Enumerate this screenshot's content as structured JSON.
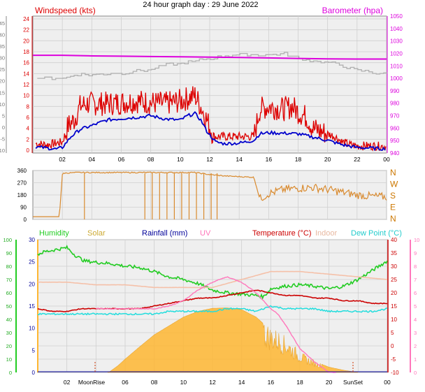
{
  "title": "24 hour graph day : 29 June 2022",
  "colors": {
    "windspeed": "#dd0000",
    "windavg": "#0000cc",
    "gust": "#b0b0b0",
    "barometer": "#dd00dd",
    "winddir": "#d98a2e",
    "humidity": "#22cc22",
    "solar": "#ffb733",
    "rainfall": "#000099",
    "uv": "#ff77bb",
    "temperature": "#cc0000",
    "indoor": "#f5c0a8",
    "dewpoint": "#22dddd",
    "grid": "#cfcfcf",
    "plot_bg": "#efefef"
  },
  "x_ticks": [
    "02",
    "04",
    "06",
    "08",
    "10",
    "12",
    "14",
    "16",
    "18",
    "20",
    "22",
    "00"
  ],
  "x_ticks_bottom": [
    "02",
    "06",
    "08",
    "10",
    "12",
    "14",
    "16",
    "18",
    "20",
    "00"
  ],
  "annotations": {
    "moonrise": "MoonRise",
    "sunset": "SunSet"
  },
  "panels": {
    "wind": {
      "left_label": "Windspeed (kts)",
      "right_label": "Barometer (hpa)",
      "left_outer_ticks": [
        "45",
        "40",
        "35",
        "30",
        "25",
        "20",
        "15",
        "10",
        "5",
        "0",
        "-5",
        "-10"
      ],
      "left_inner_ticks": [
        "24",
        "22",
        "20",
        "18",
        "16",
        "14",
        "12",
        "10",
        "8",
        "6",
        "4",
        "2",
        "0"
      ],
      "right_ticks": [
        "1050",
        "1040",
        "1030",
        "1020",
        "1010",
        "1000",
        "990",
        "980",
        "970",
        "960",
        "950",
        "940"
      ]
    },
    "direction": {
      "left_ticks": [
        "360",
        "270",
        "180",
        "90",
        "0"
      ],
      "right_ticks": [
        "N",
        "W",
        "S",
        "E",
        "N"
      ]
    },
    "weather": {
      "labels": [
        "Humidity",
        "Solar",
        "Rainfall (mm)",
        "UV",
        "Temperature (°C)",
        "Indoor",
        "Dew Point (°C)"
      ],
      "left_outer_ticks": [
        "100",
        "90",
        "80",
        "70",
        "60",
        "50",
        "40",
        "30",
        "20",
        "10",
        "0"
      ],
      "left_inner_ticks": [
        "30",
        "25",
        "20",
        "15",
        "10",
        "5",
        "0"
      ],
      "right_inner_ticks": [
        "40",
        "35",
        "30",
        "25",
        "20",
        "15",
        "10",
        "5",
        "0",
        "-5",
        "-10"
      ],
      "right_outer_ticks": [
        "10",
        "9",
        "8",
        "7",
        "6",
        "5",
        "4",
        "3",
        "2",
        "1",
        "0"
      ]
    }
  },
  "chart_data": [
    {
      "type": "line",
      "panel": "wind",
      "xunit": "hour",
      "xlim": [
        0,
        24
      ],
      "ylim_left": [
        0,
        24
      ],
      "ylim_right": [
        940,
        1050
      ],
      "series": [
        {
          "name": "Windspeed (kts)",
          "axis": "left",
          "style": "noisy",
          "x": [
            0.2,
            1.0,
            1.6,
            2.0,
            2.4,
            2.8,
            3.2,
            3.6,
            4.0,
            5.0,
            6.0,
            7.0,
            8.0,
            9.0,
            10.0,
            10.5,
            11.0,
            11.4,
            11.8,
            12.3,
            13.0,
            14.0,
            15.0,
            15.4,
            16.0,
            17.0,
            17.6,
            18.0,
            18.6,
            19.0,
            19.5,
            20.0,
            20.5,
            21.0,
            21.5,
            22.0,
            23.0,
            24.0
          ],
          "y": [
            1.2,
            1.0,
            1.3,
            1.5,
            4.5,
            5.5,
            8.0,
            8.5,
            8.5,
            8.5,
            8.7,
            9.0,
            8.7,
            8.5,
            9.0,
            9.5,
            10.0,
            8.0,
            5.5,
            2.5,
            2.5,
            2.5,
            2.5,
            7.5,
            8.0,
            7.5,
            8.0,
            7.0,
            6.0,
            4.0,
            3.5,
            3.0,
            2.5,
            1.5,
            1.0,
            0.8,
            0.8,
            0.7
          ]
        },
        {
          "name": "Wind average",
          "axis": "left",
          "style": "smooth",
          "x": [
            0.2,
            1.0,
            1.6,
            2.0,
            2.6,
            3.2,
            4.0,
            5.0,
            6.0,
            7.0,
            8.0,
            9.0,
            10.0,
            10.5,
            11.0,
            11.4,
            11.8,
            12.4,
            13.0,
            14.0,
            15.0,
            15.4,
            16.0,
            17.0,
            18.0,
            19.0,
            20.0,
            21.0,
            22.0,
            23.0,
            24.0
          ],
          "y": [
            0.6,
            0.4,
            0.2,
            0.5,
            2.5,
            3.8,
            4.5,
            5.5,
            5.8,
            6.0,
            6.3,
            5.7,
            5.5,
            6.3,
            6.7,
            5.5,
            3.5,
            1.5,
            1.2,
            1.3,
            1.8,
            3.0,
            3.2,
            3.1,
            3.0,
            2.4,
            1.8,
            1.0,
            0.5,
            0.4,
            0.2
          ]
        },
        {
          "name": "Gust",
          "axis": "right",
          "style": "step",
          "x": [
            0.0,
            1.0,
            2.0,
            3.0,
            4.0,
            5.0,
            6.0,
            7.0,
            8.0,
            9.0,
            10.0,
            11.0,
            12.0,
            13.0,
            14.0,
            15.0,
            16.0,
            17.0,
            18.0,
            19.0,
            20.0,
            21.0,
            22.0,
            23.0,
            24.0
          ],
          "y": [
            1000,
            1000,
            1000,
            1003,
            1003,
            1004,
            1004,
            1006,
            1007,
            1011,
            1012,
            1014,
            1016,
            1018,
            1019,
            1019,
            1019,
            1020,
            1016,
            1014,
            1013,
            1010,
            1006,
            1005,
            1003
          ]
        },
        {
          "name": "Barometer (hpa)",
          "axis": "right",
          "style": "smooth",
          "x": [
            0,
            2,
            4,
            6,
            8,
            10,
            12,
            14,
            16,
            18,
            20,
            22,
            24
          ],
          "y": [
            1018.5,
            1018.5,
            1018.0,
            1017.8,
            1017.5,
            1017.3,
            1017.0,
            1016.7,
            1016.4,
            1016.0,
            1015.6,
            1015.5,
            1015.5
          ]
        }
      ]
    },
    {
      "type": "line",
      "panel": "direction",
      "xunit": "hour",
      "xlim": [
        0,
        24
      ],
      "ylim": [
        0,
        360
      ],
      "series": [
        {
          "name": "Wind direction",
          "style": "direction",
          "x": [
            0.0,
            0.6,
            1.0,
            1.8,
            2.0,
            2.05,
            3.0,
            4.0,
            5.0,
            6.0,
            7.0,
            8.0,
            9.0,
            10.0,
            11.0,
            12.0,
            13.0,
            14.0,
            15.0,
            15.4,
            16.0,
            17.0,
            18.0,
            19.0,
            20.0,
            21.0,
            22.0,
            23.0,
            24.0
          ],
          "y": [
            20,
            20,
            20,
            20,
            330,
            340,
            345,
            345,
            345,
            345,
            345,
            345,
            345,
            345,
            345,
            330,
            320,
            315,
            310,
            150,
            190,
            220,
            230,
            235,
            220,
            200,
            180,
            170,
            165
          ]
        }
      ]
    },
    {
      "type": "line",
      "panel": "weather",
      "xunit": "hour",
      "xlim": [
        0,
        24
      ],
      "ylim_temperature": [
        -10,
        40
      ],
      "ylim_humidity": [
        0,
        100
      ],
      "ylim_solar": [
        0,
        30
      ],
      "series": [
        {
          "name": "Humidity",
          "axis": "humidity",
          "style": "noisy",
          "x": [
            0,
            0.5,
            1,
            1.5,
            2,
            2.6,
            3.2,
            4,
            5,
            6,
            7,
            8,
            9,
            10,
            11,
            12,
            13,
            14,
            15,
            15.5,
            16,
            17,
            18,
            19,
            20,
            21,
            22,
            23,
            24
          ],
          "y": [
            89,
            91,
            92,
            93,
            94,
            88,
            84,
            83,
            82,
            80,
            79,
            76,
            72,
            70,
            67,
            62,
            60,
            59,
            58,
            57,
            63,
            65,
            66,
            65,
            63,
            65,
            70,
            77,
            84
          ]
        },
        {
          "name": "Temperature (°C)",
          "axis": "temperature",
          "style": "smooth",
          "x": [
            0,
            1,
            2,
            3,
            4,
            5,
            6,
            7,
            8,
            9,
            10,
            11,
            12,
            13,
            14,
            15,
            16,
            17,
            18,
            19,
            20,
            21,
            22,
            23,
            24
          ],
          "y": [
            14,
            13,
            13,
            14,
            14,
            14,
            14,
            14,
            15,
            16,
            17,
            18,
            18,
            19,
            20,
            21,
            20,
            19,
            19,
            18,
            18,
            17,
            17,
            16,
            16
          ]
        },
        {
          "name": "Indoor",
          "axis": "temperature",
          "style": "smooth",
          "x": [
            0,
            2,
            4,
            6,
            8,
            10,
            12,
            14,
            16,
            18,
            20,
            22,
            24
          ],
          "y": [
            24,
            24,
            23,
            23,
            22,
            22,
            22,
            25,
            28,
            28,
            27,
            26,
            25
          ]
        },
        {
          "name": "Dew Point (°C)",
          "axis": "temperature",
          "style": "noisy",
          "x": [
            0,
            1,
            2,
            3,
            4,
            5,
            6,
            7,
            8,
            9,
            10,
            11,
            12,
            13,
            14,
            15,
            16,
            17,
            18,
            19,
            20,
            21,
            22,
            23,
            24
          ],
          "y": [
            12,
            12,
            12,
            12,
            12,
            12,
            12,
            12,
            12,
            13,
            13,
            13,
            13,
            14,
            14,
            13,
            15,
            14,
            14,
            14,
            13,
            13,
            13,
            13,
            14
          ]
        },
        {
          "name": "UV",
          "axis": "temperature",
          "style": "smooth",
          "x": [
            4,
            5,
            6,
            7,
            8,
            9,
            10,
            11,
            12,
            13,
            13.5,
            14,
            15,
            16,
            16.5,
            17,
            18,
            19,
            20,
            20.5
          ],
          "y": [
            14,
            14,
            14,
            14,
            14,
            15,
            17,
            21,
            24,
            26,
            25,
            24,
            20,
            14,
            12,
            8,
            -1,
            -6,
            -10,
            -10
          ]
        },
        {
          "name": "Solar",
          "axis": "solar",
          "style": "area",
          "x": [
            4.8,
            5,
            5.5,
            6,
            7,
            8,
            9,
            10,
            11,
            12,
            13,
            14,
            15,
            15.5,
            16,
            16.5,
            17,
            17.5,
            18,
            19,
            20,
            21,
            22
          ],
          "y": [
            0,
            0.3,
            1.5,
            3.0,
            5.8,
            8.5,
            10.5,
            12.5,
            13.8,
            14.5,
            14.6,
            14.2,
            12.5,
            11.0,
            9.5,
            8.8,
            7.5,
            6.0,
            4.3,
            2.5,
            1.2,
            0.5,
            0
          ]
        }
      ]
    }
  ]
}
